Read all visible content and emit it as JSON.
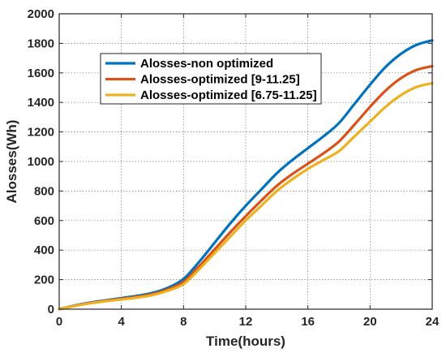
{
  "chart_data": {
    "type": "line",
    "title": "",
    "xlabel": "Time(hours)",
    "ylabel": "Alosses(Wh)",
    "xlim": [
      0,
      24
    ],
    "ylim": [
      0,
      2000
    ],
    "xticks": [
      0,
      4,
      8,
      12,
      16,
      20,
      24
    ],
    "yticks": [
      0,
      200,
      400,
      600,
      800,
      1000,
      1200,
      1400,
      1600,
      1800,
      2000
    ],
    "xtick_labels": [
      "0",
      "4",
      "8",
      "12",
      "16",
      "20",
      "24"
    ],
    "ytick_labels": [
      "0",
      "200",
      "400",
      "600",
      "800",
      "1000",
      "1200",
      "1400",
      "1600",
      "1800",
      "2000"
    ],
    "grid": true,
    "legend_position": "upper-center",
    "x": [
      0,
      1,
      2,
      3,
      4,
      5,
      6,
      7,
      8,
      9,
      10,
      11,
      12,
      13,
      14,
      15,
      16,
      17,
      18,
      19,
      20,
      21,
      22,
      23,
      24
    ],
    "series": [
      {
        "name": "Alosses-non optimized",
        "color": "#0072BD",
        "values": [
          0,
          25,
          45,
          60,
          75,
          90,
          110,
          145,
          205,
          320,
          450,
          580,
          700,
          810,
          920,
          1010,
          1090,
          1170,
          1260,
          1390,
          1520,
          1640,
          1730,
          1790,
          1820
        ]
      },
      {
        "name": "Alosses-optimized [9-11.25]",
        "color": "#D95319",
        "values": [
          0,
          23,
          42,
          57,
          70,
          84,
          102,
          135,
          185,
          290,
          405,
          520,
          630,
          735,
          835,
          915,
          985,
          1055,
          1135,
          1250,
          1370,
          1480,
          1565,
          1620,
          1645
        ]
      },
      {
        "name": "Alosses-optimized [6.75-11.25]",
        "color": "#EDB120",
        "values": [
          0,
          22,
          40,
          54,
          66,
          78,
          95,
          125,
          170,
          270,
          380,
          490,
          600,
          700,
          800,
          880,
          950,
          1010,
          1070,
          1170,
          1270,
          1370,
          1450,
          1505,
          1530
        ]
      }
    ]
  }
}
